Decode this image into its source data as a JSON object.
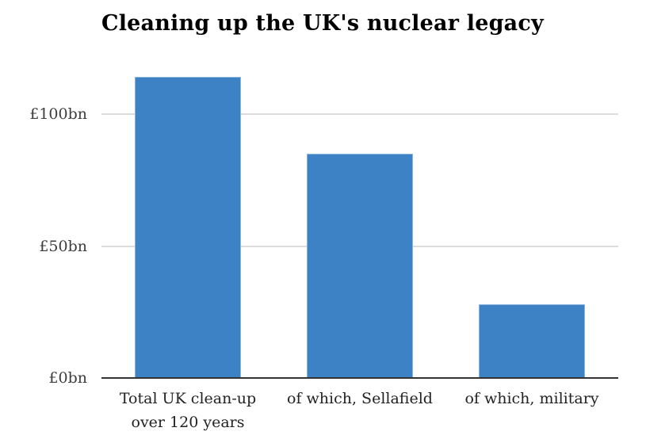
{
  "chart_data": {
    "type": "bar",
    "title": "Cleaning up the UK's nuclear legacy",
    "categories": [
      "Total UK clean-up over 120 years",
      "of which, Sellafield",
      "of which, military"
    ],
    "category_lines": [
      [
        "Total UK clean-up",
        "over 120 years"
      ],
      [
        "of which, Sellafield"
      ],
      [
        "of which, military"
      ]
    ],
    "values": [
      114,
      85,
      28
    ],
    "unit": "£bn",
    "ylim": [
      0,
      125
    ],
    "yticks": [
      {
        "value": 0,
        "label": "£0bn"
      },
      {
        "value": 50,
        "label": "£50bn"
      },
      {
        "value": 100,
        "label": "£100bn"
      }
    ],
    "grid": true,
    "legend": "none",
    "colors": {
      "bar": "#3d82c4",
      "gridline": "#dcdcdc",
      "baseline": "#333333",
      "title_text": "#000000",
      "ytick_text": "#3d3d3d",
      "xtick_text": "#222222",
      "background": "#ffffff"
    }
  }
}
